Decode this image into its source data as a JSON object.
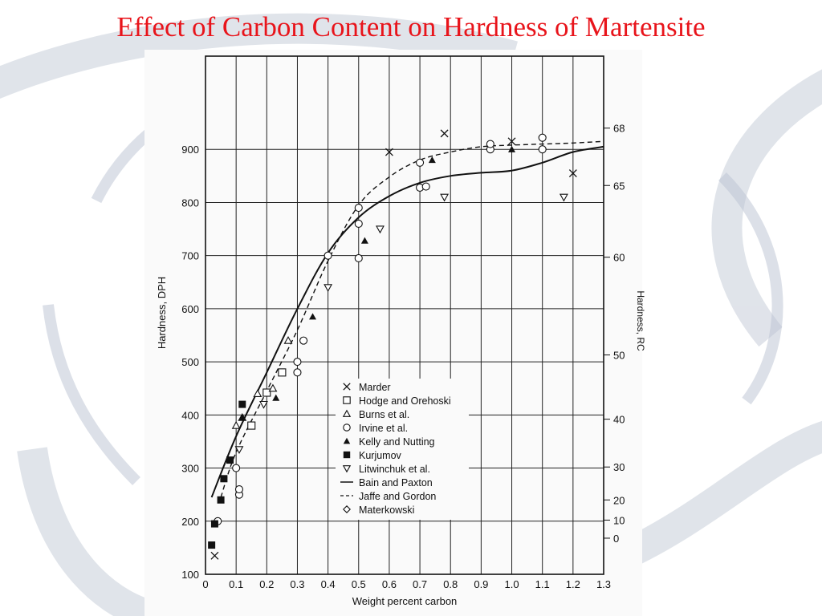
{
  "title": "Effect of Carbon Content on Hardness of Martensite",
  "colors": {
    "title": "#e8141b",
    "ink": "#111111",
    "swirl": "#c7cdd9"
  },
  "chart_data": {
    "type": "scatter",
    "xlabel": "Weight percent carbon",
    "ylabel": "Hardness, DPH",
    "ylabel_right": "Hardness, RC",
    "xlim": [
      0,
      1.3
    ],
    "ylim": [
      100,
      920
    ],
    "x_ticks": [
      "0",
      "0.1",
      "0.2",
      "0.3",
      "0.4",
      "0.5",
      "0.6",
      "0.7",
      "0.8",
      "0.9",
      "1.0",
      "1.1",
      "1.2",
      "1.3"
    ],
    "y_ticks": [
      "100",
      "200",
      "300",
      "400",
      "500",
      "600",
      "700",
      "800",
      "900"
    ],
    "right_ticks": [
      {
        "label": "68",
        "dph": 940
      },
      {
        "label": "65",
        "dph": 832
      },
      {
        "label": "60",
        "dph": 697
      },
      {
        "label": "50",
        "dph": 513
      },
      {
        "label": "40",
        "dph": 392
      },
      {
        "label": "30",
        "dph": 302
      },
      {
        "label": "20",
        "dph": 240
      },
      {
        "label": "10",
        "dph": 202
      },
      {
        "label": "0",
        "dph": 168
      }
    ],
    "grid": true,
    "legend_position": "bottom-center",
    "series": [
      {
        "name": "Marder",
        "marker": "x",
        "points": [
          [
            0.03,
            135
          ],
          [
            0.6,
            895
          ],
          [
            0.78,
            930
          ],
          [
            1.0,
            915
          ],
          [
            1.2,
            855
          ]
        ]
      },
      {
        "name": "Hodge and Orehoski",
        "marker": "square-open",
        "points": [
          [
            0.15,
            380
          ],
          [
            0.2,
            442
          ],
          [
            0.25,
            480
          ]
        ]
      },
      {
        "name": "Burns et al.",
        "marker": "triangle-open",
        "points": [
          [
            0.1,
            380
          ],
          [
            0.12,
            395
          ],
          [
            0.17,
            440
          ],
          [
            0.22,
            450
          ],
          [
            0.27,
            540
          ]
        ]
      },
      {
        "name": "Irvine et al.",
        "marker": "circle-open",
        "points": [
          [
            0.04,
            200
          ],
          [
            0.1,
            300
          ],
          [
            0.11,
            250
          ],
          [
            0.11,
            260
          ],
          [
            0.3,
            480
          ],
          [
            0.3,
            500
          ],
          [
            0.32,
            540
          ],
          [
            0.4,
            700
          ],
          [
            0.5,
            760
          ],
          [
            0.5,
            790
          ],
          [
            0.5,
            695
          ],
          [
            0.7,
            875
          ],
          [
            0.7,
            828
          ],
          [
            0.72,
            830
          ],
          [
            0.93,
            900
          ],
          [
            0.93,
            910
          ],
          [
            1.1,
            900
          ],
          [
            1.1,
            922
          ]
        ]
      },
      {
        "name": "Kelly and Nutting",
        "marker": "triangle-filled",
        "points": [
          [
            0.12,
            395
          ],
          [
            0.23,
            432
          ],
          [
            0.35,
            585
          ],
          [
            0.52,
            728
          ],
          [
            0.74,
            880
          ],
          [
            1.0,
            900
          ]
        ]
      },
      {
        "name": "Kurjumov",
        "marker": "square-filled",
        "points": [
          [
            0.02,
            155
          ],
          [
            0.03,
            195
          ],
          [
            0.05,
            240
          ],
          [
            0.06,
            280
          ],
          [
            0.08,
            315
          ],
          [
            0.12,
            420
          ]
        ]
      },
      {
        "name": "Litwinchuk et al.",
        "marker": "triangle-down-open",
        "points": [
          [
            0.11,
            335
          ],
          [
            0.19,
            420
          ],
          [
            0.4,
            640
          ],
          [
            0.57,
            750
          ],
          [
            0.78,
            810
          ],
          [
            1.17,
            810
          ]
        ]
      },
      {
        "name": "Bain and Paxton",
        "marker": "line-solid",
        "points": [
          [
            0.02,
            245
          ],
          [
            0.1,
            360
          ],
          [
            0.2,
            480
          ],
          [
            0.3,
            600
          ],
          [
            0.4,
            705
          ],
          [
            0.5,
            772
          ],
          [
            0.6,
            812
          ],
          [
            0.7,
            837
          ],
          [
            0.8,
            850
          ],
          [
            0.9,
            856
          ],
          [
            1.0,
            860
          ],
          [
            1.1,
            875
          ],
          [
            1.2,
            895
          ],
          [
            1.3,
            905
          ]
        ]
      },
      {
        "name": "Jaffe and Gordon",
        "marker": "line-dashed",
        "points": [
          [
            0.05,
            245
          ],
          [
            0.1,
            330
          ],
          [
            0.2,
            445
          ],
          [
            0.3,
            560
          ],
          [
            0.4,
            690
          ],
          [
            0.5,
            795
          ],
          [
            0.6,
            848
          ],
          [
            0.7,
            880
          ],
          [
            0.8,
            895
          ],
          [
            0.9,
            905
          ],
          [
            1.0,
            908
          ],
          [
            1.1,
            910
          ],
          [
            1.2,
            912
          ],
          [
            1.3,
            915
          ]
        ]
      },
      {
        "name": "Materkowski",
        "marker": "diamond-open",
        "points": []
      }
    ]
  }
}
